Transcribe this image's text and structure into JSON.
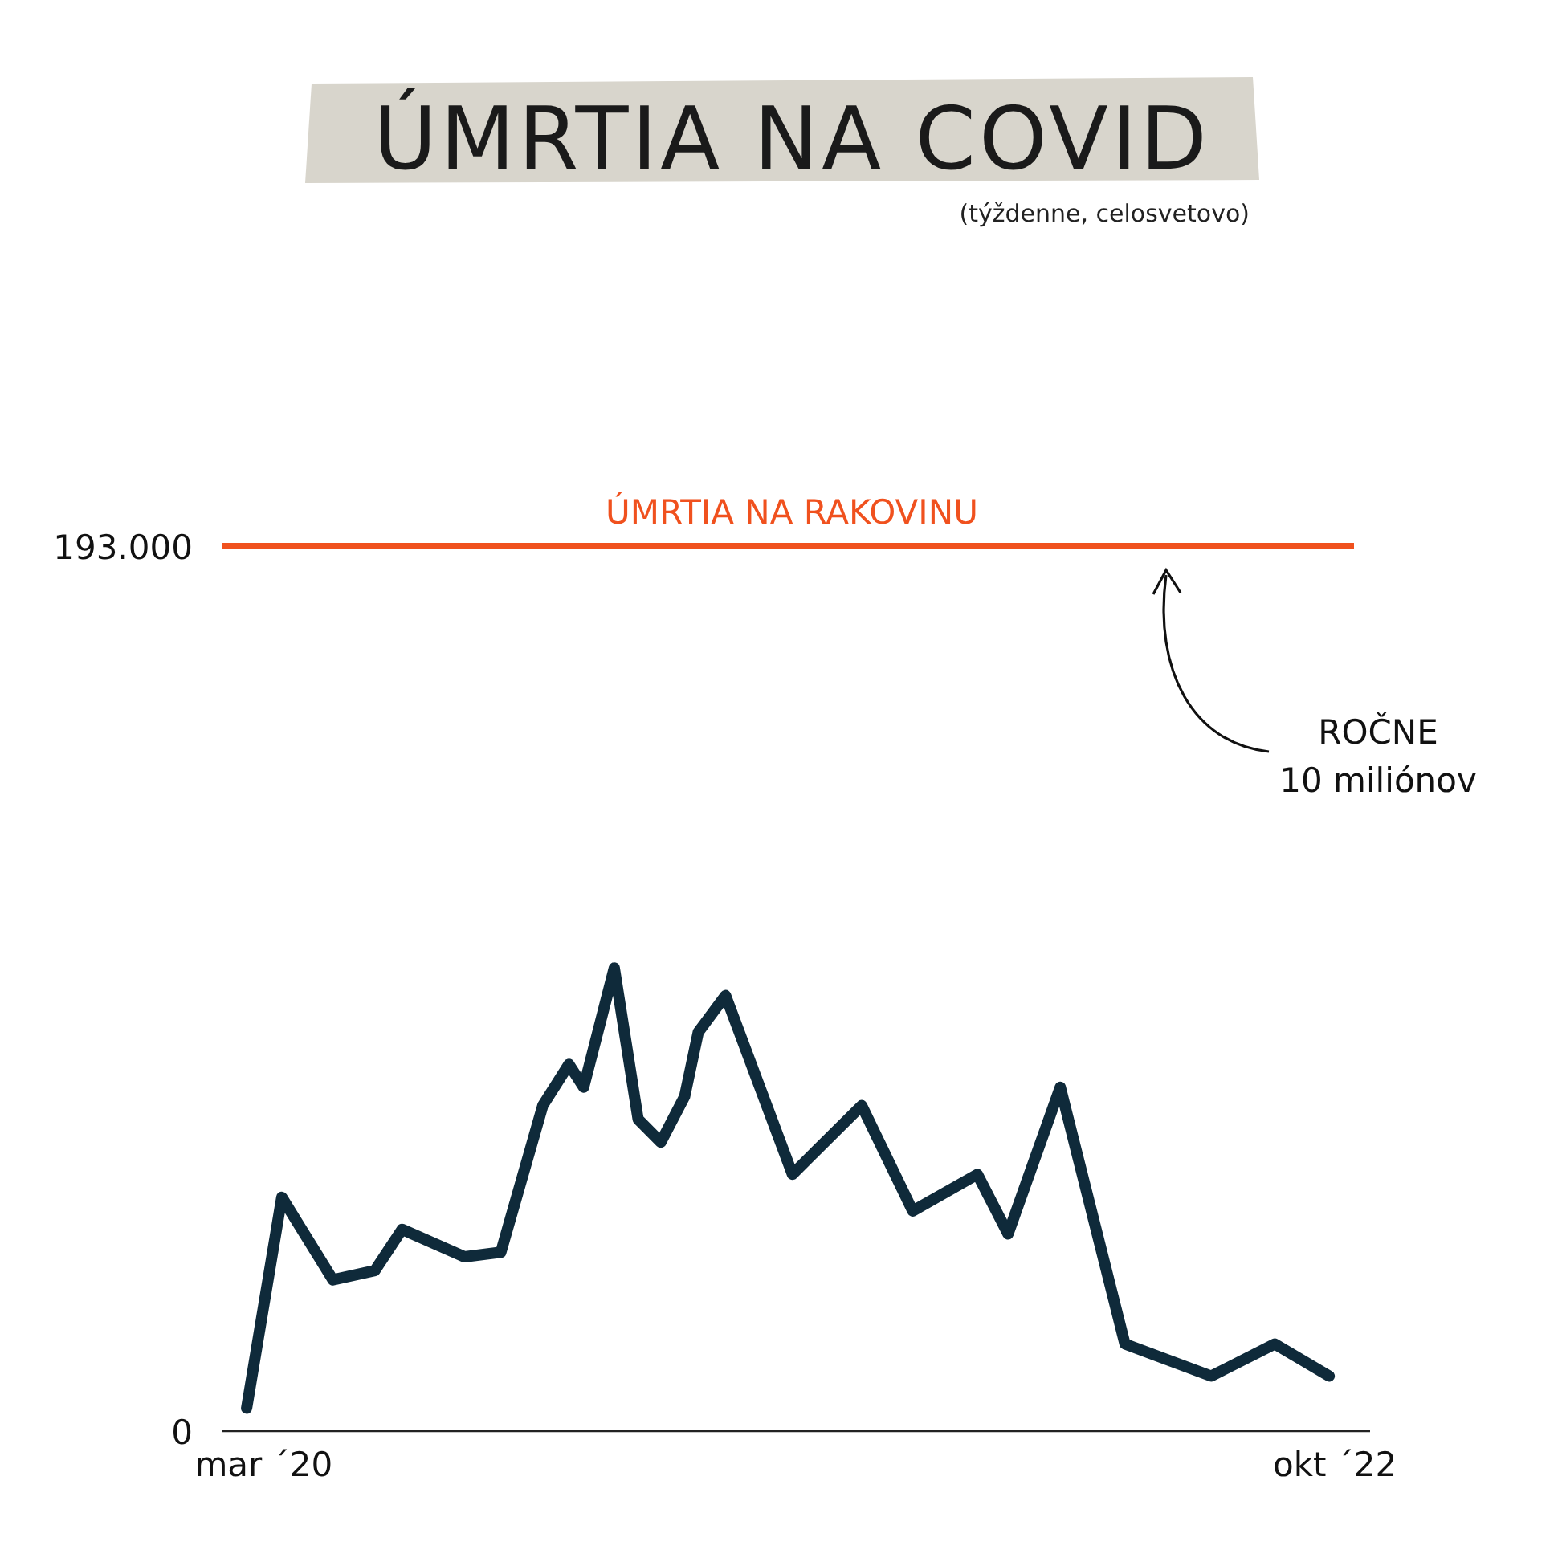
{
  "chart_data": {
    "type": "line",
    "title": "ÚMRTIA NA COVID",
    "subtitle": "(týždenne, celosvetovo)",
    "x": [
      "2020-02-15",
      "2020-03-17",
      "2020-05-01",
      "2020-06-07",
      "2020-07-01",
      "2020-08-25",
      "2020-09-26",
      "2020-11-02",
      "2020-11-25",
      "2020-12-08",
      "2021-01-04",
      "2021-01-25",
      "2021-02-14",
      "2021-03-07",
      "2021-03-19",
      "2021-04-12",
      "2021-06-10",
      "2021-08-10",
      "2021-09-24",
      "2021-11-20",
      "2021-12-17",
      "2022-02-01",
      "2022-03-30",
      "2022-06-14",
      "2022-08-09",
      "2022-09-26"
    ],
    "series": [
      {
        "color": "#0f2a3a",
        "values": [
          5000,
          51000,
          33000,
          35000,
          44000,
          38000,
          39000,
          71000,
          80000,
          75000,
          101000,
          68000,
          63000,
          73000,
          87000,
          95000,
          56000,
          71000,
          48000,
          56000,
          43000,
          75000,
          19000,
          12000,
          19000,
          12000
        ]
      }
    ],
    "xlim": [
      "2020-01-24",
      "2022-11-01"
    ],
    "xticks": [
      {
        "value": "2020-03-01",
        "label": "mar ´20"
      },
      {
        "value": "2022-10-01",
        "label": "okt ´22"
      }
    ],
    "ylim": [
      0,
      193000
    ],
    "yticks": [
      {
        "value": 0,
        "label": "0"
      },
      {
        "value": 193000,
        "label": "193.000"
      }
    ],
    "ref_lines": [
      {
        "axis": "y",
        "value": 193000,
        "label": "ÚMRTIA NA RAKOVINU",
        "color": "#f0511e"
      }
    ],
    "annotations": [
      "ROČNE\n10 miliónov"
    ],
    "grid": false,
    "marker": "none",
    "line_style": "solid"
  }
}
